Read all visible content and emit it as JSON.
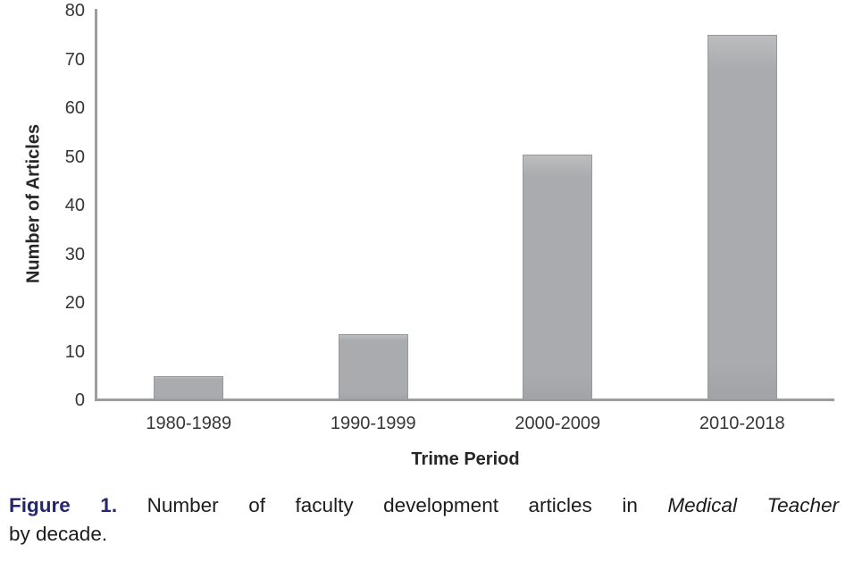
{
  "chart_data": {
    "type": "bar",
    "categories": [
      "1980-1989",
      "1990-1999",
      "2000-2009",
      "2010-2018"
    ],
    "values": [
      5,
      13.5,
      50.5,
      75
    ],
    "title": "",
    "xlabel": "Trime Period",
    "ylabel": "Number of Articles",
    "ylim": [
      0,
      80
    ],
    "yticks": [
      0,
      10,
      20,
      30,
      40,
      50,
      60,
      70,
      80
    ],
    "grid": false,
    "legend": "none",
    "bar_color": "#a9abae",
    "bar_border_color": "#96989b",
    "axis_color": "#9b9da0"
  },
  "caption": {
    "label": "Figure 1.",
    "text": "Number of faculty development articles in",
    "italic": "Medical Teacher",
    "line2": "by decade.",
    "label_color": "#24276e"
  }
}
